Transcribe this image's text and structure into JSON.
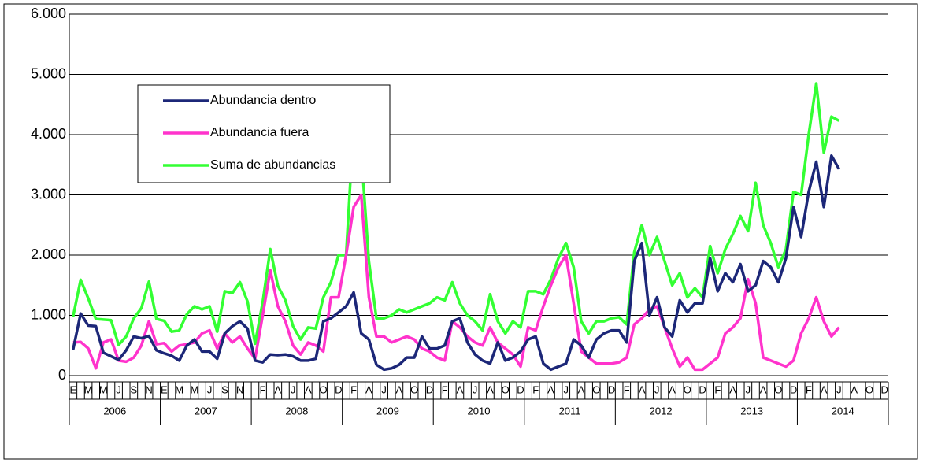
{
  "chart_data": {
    "type": "line",
    "categories": [
      "E",
      null,
      "M",
      null,
      "M",
      null,
      "J",
      null,
      "S",
      null,
      "N",
      null,
      "E",
      null,
      "M",
      null,
      "M",
      null,
      "J",
      null,
      "S",
      null,
      "N",
      null,
      null,
      "F",
      null,
      "A",
      null,
      "J",
      null,
      "A",
      null,
      "O",
      null,
      "D",
      null,
      "F",
      null,
      "A",
      null,
      "J",
      null,
      "A",
      null,
      "O",
      null,
      "D",
      null,
      "F",
      null,
      "A",
      null,
      "J",
      null,
      "A",
      null,
      "O",
      null,
      "D",
      null,
      "F",
      null,
      "A",
      null,
      "J",
      null,
      "A",
      null,
      "O",
      null,
      "D",
      null,
      "F",
      null,
      "A",
      null,
      "J",
      null,
      "A",
      null,
      "O",
      null,
      "D",
      null,
      "F",
      null,
      "A",
      null,
      "J",
      null,
      "A",
      null,
      "O",
      null,
      "D",
      null,
      "F",
      null,
      "A",
      null,
      "J",
      null,
      "A",
      null,
      "O",
      null,
      "D"
    ],
    "years": [
      "2006",
      "2007",
      "2008",
      "2009",
      "2010",
      "2011",
      "2012",
      "2013",
      "2014"
    ],
    "ylim": [
      0,
      6000
    ],
    "yticks": [
      0,
      {
        "value": 1000,
        "label": "1.000"
      },
      {
        "value": 2000,
        "label": "2.000"
      },
      {
        "value": 3000,
        "label": "3.000"
      },
      {
        "value": 4000,
        "label": "4.000"
      },
      {
        "value": 5000,
        "label": "5.000"
      },
      {
        "value": 6000,
        "label": "6.000"
      }
    ],
    "grid": true,
    "legend": "upper left",
    "series": [
      {
        "name": "Abundancia dentro",
        "color": "#1c2778",
        "values": [
          430,
          1030,
          830,
          820,
          380,
          320,
          260,
          420,
          650,
          620,
          660,
          420,
          370,
          330,
          250,
          500,
          600,
          400,
          400,
          280,
          700,
          820,
          900,
          780,
          250,
          220,
          350,
          340,
          350,
          320,
          250,
          250,
          280,
          900,
          950,
          1050,
          1150,
          1380,
          700,
          600,
          180,
          100,
          120,
          180,
          300,
          300,
          650,
          450,
          450,
          500,
          900,
          950,
          550,
          350,
          250,
          200,
          550,
          250,
          300,
          400,
          600,
          650,
          200,
          100,
          150,
          200,
          600,
          500,
          300,
          600,
          700,
          750,
          750,
          550,
          1900,
          2200,
          1000,
          1300,
          800,
          650,
          1250,
          1050,
          1200,
          1200,
          1950,
          1400,
          1700,
          1550,
          1850,
          1400,
          1500,
          1900,
          1800,
          1550,
          1950,
          2800,
          2300,
          3050,
          3550,
          2800,
          3650,
          3430,
          null,
          null,
          null,
          null,
          null,
          null
        ]
      },
      {
        "name": "Abundancia fuera",
        "color": "#ff33cc",
        "values": [
          550,
          560,
          450,
          120,
          550,
          600,
          250,
          230,
          300,
          500,
          900,
          520,
          540,
          400,
          500,
          520,
          550,
          700,
          750,
          450,
          700,
          550,
          650,
          450,
          280,
          1000,
          1750,
          1150,
          900,
          500,
          350,
          550,
          500,
          400,
          1300,
          1300,
          2000,
          2800,
          3000,
          1300,
          650,
          650,
          550,
          600,
          650,
          600,
          450,
          400,
          300,
          250,
          900,
          800,
          650,
          550,
          500,
          800,
          550,
          450,
          350,
          150,
          800,
          750,
          1150,
          1500,
          1800,
          2000,
          1200,
          400,
          300,
          200,
          200,
          200,
          220,
          300,
          850,
          950,
          1100,
          1150,
          800,
          450,
          150,
          300,
          100,
          100,
          200,
          300,
          700,
          800,
          950,
          1600,
          1200,
          300,
          250,
          200,
          150,
          250,
          700,
          950,
          1300,
          900,
          650,
          800,
          null,
          null,
          null,
          null,
          null,
          null
        ]
      },
      {
        "name": "Suma de abundancias",
        "color": "#33ff33",
        "values": [
          980,
          1590,
          1280,
          940,
          930,
          920,
          510,
          650,
          950,
          1120,
          1560,
          940,
          910,
          730,
          750,
          1020,
          1150,
          1100,
          1150,
          730,
          1400,
          1370,
          1550,
          1230,
          530,
          1220,
          2100,
          1490,
          1250,
          820,
          600,
          800,
          780,
          1300,
          1550,
          2000,
          2000,
          4180,
          3700,
          1900,
          950,
          950,
          1000,
          1100,
          1050,
          1100,
          1150,
          1200,
          1300,
          1250,
          1550,
          1200,
          1000,
          900,
          750,
          1350,
          900,
          700,
          900,
          800,
          1400,
          1400,
          1350,
          1600,
          1950,
          2200,
          1800,
          900,
          700,
          900,
          900,
          950,
          970,
          850,
          2050,
          2500,
          2000,
          2300,
          1900,
          1500,
          1700,
          1300,
          1450,
          1300,
          2150,
          1700,
          2100,
          2350,
          2650,
          2400,
          3200,
          2500,
          2200,
          1800,
          2100,
          3050,
          3000,
          4000,
          4850,
          3700,
          4300,
          4230,
          null,
          null,
          null,
          null,
          null,
          null
        ]
      }
    ]
  }
}
